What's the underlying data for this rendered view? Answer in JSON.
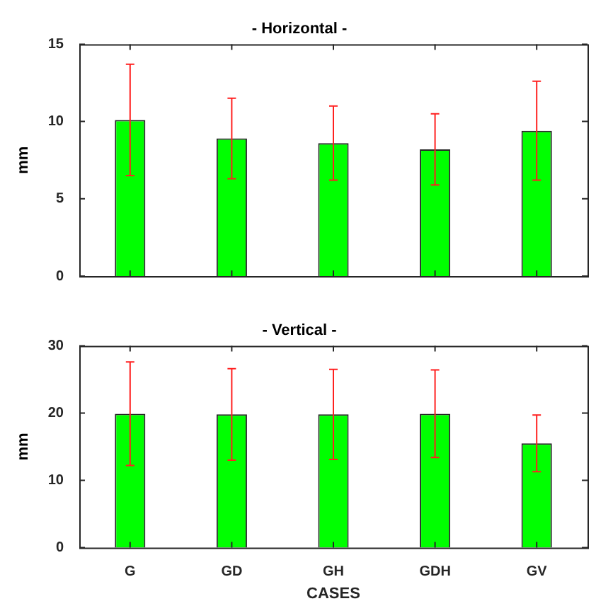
{
  "chart_data": [
    {
      "type": "bar",
      "title": "- Horizontal -",
      "ylabel": "mm",
      "categories": [
        null,
        null,
        null,
        null,
        null
      ],
      "tick_labels": "y",
      "series": [
        {
          "color": "#00ff00",
          "values": [
            10.1,
            8.9,
            8.6,
            8.2,
            9.4
          ],
          "errors": [
            3.6,
            2.6,
            2.4,
            2.3,
            3.2
          ]
        }
      ],
      "ylim": [
        0,
        15
      ],
      "yticks": [
        0,
        5,
        10,
        15
      ]
    },
    {
      "type": "bar",
      "title": "- Vertical -",
      "ylabel": "mm",
      "xlabel": "CASES",
      "categories": [
        "G",
        "GD",
        "GH",
        "GDH",
        "GV"
      ],
      "series": [
        {
          "color": "#00ff00",
          "values": [
            19.9,
            19.8,
            19.8,
            19.9,
            15.5
          ],
          "errors": [
            7.7,
            6.8,
            6.7,
            6.5,
            4.2
          ]
        }
      ],
      "ylim": [
        0,
        30
      ],
      "yticks": [
        0,
        10,
        20,
        30
      ]
    }
  ]
}
